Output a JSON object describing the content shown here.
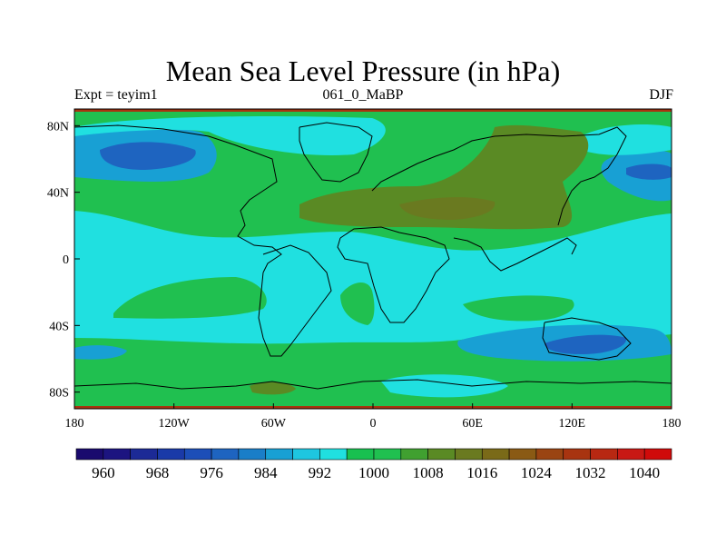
{
  "title": "Mean Sea Level Pressure (in hPa)",
  "subtitle": {
    "left": "Expt = teyim1",
    "center": "061_0_MaBP",
    "right": "DJF"
  },
  "map": {
    "lon_range": [
      -180,
      180
    ],
    "lat_range": [
      -90,
      90
    ],
    "x_ticks": [
      {
        "lon": -180,
        "label": "180"
      },
      {
        "lon": -120,
        "label": "120W"
      },
      {
        "lon": -60,
        "label": "60W"
      },
      {
        "lon": 0,
        "label": "0"
      },
      {
        "lon": 60,
        "label": "60E"
      },
      {
        "lon": 120,
        "label": "120E"
      },
      {
        "lon": 180,
        "label": "180"
      }
    ],
    "y_ticks": [
      {
        "lat": 80,
        "label": "80N"
      },
      {
        "lat": 40,
        "label": "40N"
      },
      {
        "lat": 0,
        "label": "0"
      },
      {
        "lat": -40,
        "label": "40S"
      },
      {
        "lat": -80,
        "label": "80S"
      }
    ]
  },
  "colorbar": {
    "colors": [
      "#1a0a6e",
      "#1c1480",
      "#1c2a96",
      "#1a3aa8",
      "#1c4eb8",
      "#1e64c0",
      "#1a7ec8",
      "#18a0d4",
      "#1ec6e0",
      "#20e0e0",
      "#18c050",
      "#20c050",
      "#40a030",
      "#5a8a24",
      "#6a7a20",
      "#7a6a18",
      "#8a5a14",
      "#9a4412",
      "#a83410",
      "#b82812",
      "#c81814",
      "#d00a0a"
    ],
    "labels": [
      "960",
      "968",
      "976",
      "984",
      "992",
      "1000",
      "1008",
      "1016",
      "1024",
      "1032",
      "1040"
    ]
  },
  "fields": {
    "background": "#20e0e0",
    "green": "#20c050",
    "brown": "#5a8a24",
    "dark_brown": "#6a7a20",
    "blue": "#18a0d4",
    "dark_blue": "#1e64c0",
    "red": "#a83410"
  }
}
